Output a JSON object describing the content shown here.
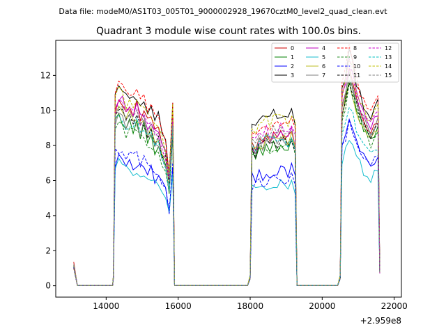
{
  "chart_data": {
    "type": "line",
    "suptitle": "Data file: modeM0/AS1T03_005T01_9000002928_19670cztM0_level2_quad_clean.evt",
    "title": "Quadrant 3 module wise count rates with 100.0s bins.",
    "xlabel": "",
    "ylabel": "",
    "x_offset_label": "+2.959e8",
    "xlim": [
      12600,
      22200
    ],
    "ylim": [
      -0.65,
      14.0
    ],
    "xticks": [
      14000,
      16000,
      18000,
      20000,
      22000
    ],
    "yticks": [
      0,
      2,
      4,
      6,
      8,
      10,
      12
    ],
    "grid": false,
    "legend_position": "top-right",
    "legend_columns": 4,
    "segments": [
      {
        "start": 14250,
        "end": 15850,
        "shape": [
          0.0,
          0.05,
          0.03,
          -0.02,
          0.01,
          -0.03,
          0.0,
          -0.06,
          -0.02,
          -0.1,
          -0.08,
          -0.15,
          -0.12,
          -0.2,
          -0.25,
          -0.4,
          -0.05
        ]
      },
      {
        "start": 18050,
        "end": 19250,
        "shape": [
          0.0,
          -0.02,
          0.04,
          0.02,
          0.06,
          0.03,
          0.07,
          0.05,
          0.08,
          0.06,
          0.04,
          0.1,
          0.02
        ]
      },
      {
        "start": 20550,
        "end": 21550,
        "shape": [
          0.0,
          0.08,
          0.18,
          0.12,
          0.03,
          -0.03,
          -0.08,
          -0.12,
          -0.15,
          -0.1,
          -0.08
        ]
      }
    ],
    "series": [
      {
        "name": "0",
        "color": "#cc0000",
        "dash": "solid",
        "level": [
          10.3,
          8.1,
          10.4
        ]
      },
      {
        "name": "1",
        "color": "#008000",
        "dash": "solid",
        "level": [
          9.2,
          7.6,
          9.8
        ]
      },
      {
        "name": "2",
        "color": "#0000ff",
        "dash": "solid",
        "level": [
          7.1,
          6.1,
          8.0
        ]
      },
      {
        "name": "3",
        "color": "#000000",
        "dash": "solid",
        "level": [
          10.9,
          9.2,
          11.2
        ]
      },
      {
        "name": "4",
        "color": "#bf00bf",
        "dash": "solid",
        "level": [
          10.2,
          8.0,
          10.8
        ]
      },
      {
        "name": "5",
        "color": "#17becf",
        "dash": "solid",
        "level": [
          6.7,
          5.4,
          7.2
        ]
      },
      {
        "name": "6",
        "color": "#bcbd22",
        "dash": "solid",
        "level": [
          9.6,
          7.9,
          9.8
        ]
      },
      {
        "name": "7",
        "color": "#7f7f7f",
        "dash": "solid",
        "level": [
          9.4,
          7.8,
          10.2
        ]
      },
      {
        "name": "8",
        "color": "#ff0000",
        "dash": "dashed",
        "level": [
          11.1,
          8.6,
          11.5
        ]
      },
      {
        "name": "9",
        "color": "#228b22",
        "dash": "dashed",
        "level": [
          8.9,
          7.5,
          9.6
        ]
      },
      {
        "name": "10",
        "color": "#0000ff",
        "dash": "dashed",
        "level": [
          7.5,
          5.7,
          7.9
        ]
      },
      {
        "name": "11",
        "color": "#000000",
        "dash": "dashed",
        "level": [
          9.5,
          7.7,
          9.9
        ]
      },
      {
        "name": "12",
        "color": "#cc00cc",
        "dash": "dashed",
        "level": [
          10.0,
          8.3,
          10.7
        ]
      },
      {
        "name": "13",
        "color": "#00bfbf",
        "dash": "dashed",
        "level": [
          9.3,
          7.9,
          8.6
        ]
      },
      {
        "name": "14",
        "color": "#bfbf00",
        "dash": "dashed",
        "level": [
          10.6,
          9.0,
          11.0
        ]
      },
      {
        "name": "15",
        "color": "#808080",
        "dash": "dashed",
        "level": [
          9.8,
          8.2,
          10.1
        ]
      }
    ]
  }
}
